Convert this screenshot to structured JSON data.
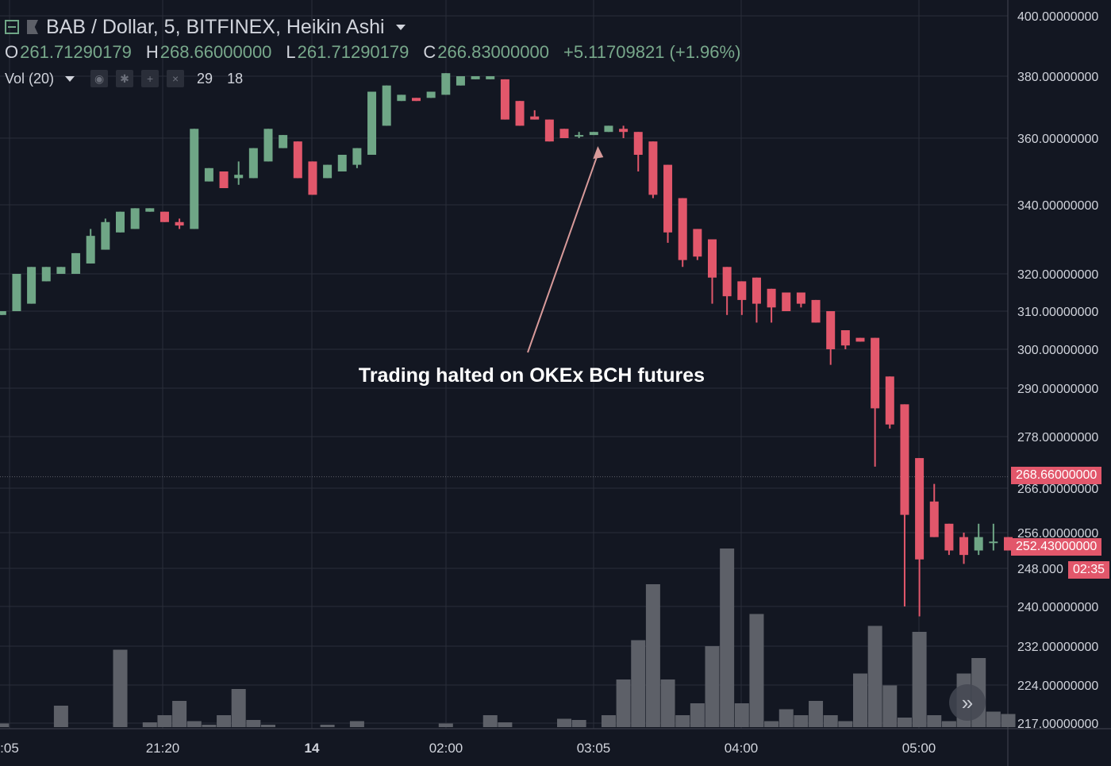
{
  "header": {
    "symbol_title": "BAB / Dollar, 5, BITFINEX, Heikin Ashi",
    "ohlc": [
      {
        "key": "O",
        "value": "261.71290179"
      },
      {
        "key": "H",
        "value": "268.66000000"
      },
      {
        "key": "L",
        "value": "261.71290179"
      },
      {
        "key": "C",
        "value": "266.83000000"
      }
    ],
    "change": "+5.11709821 (+1.96%)",
    "vol_indicator": {
      "label": "Vol (20)",
      "value_1": "29",
      "value_2": "18"
    }
  },
  "colors": {
    "background": "#131722",
    "up": "#6fa686",
    "down": "#e2576b",
    "volume": "#5d6068",
    "grid": "#2a2e39",
    "text": "#d1d4dc",
    "annotation_arrow": "#d89a9a"
  },
  "price_labels": {
    "high_line": "268.66000000",
    "last_price": "252.43000000",
    "countdown": "02:35"
  },
  "scroll_button_icon": "double-chevron-right-icon",
  "chart_data": {
    "type": "candlestick",
    "title": "BAB / Dollar, 5, BITFINEX, Heikin Ashi",
    "y_ticks": [
      "400.00000000",
      "380.00000000",
      "360.00000000",
      "340.00000000",
      "320.00000000",
      "310.00000000",
      "300.00000000",
      "290.00000000",
      "278.00000000",
      "266.00000000",
      "256.00000000",
      "248.000",
      "240.00000000",
      "232.00000000",
      "224.00000000",
      "217.00000000"
    ],
    "x_ticks": [
      ":05",
      "21:20",
      "14",
      "02:00",
      "03:05",
      "04:00",
      "05:00"
    ],
    "annotation": {
      "text": "Trading halted on OKEx BCH futures",
      "points_to_bar": 40
    },
    "candles": [
      {
        "o": 309,
        "h": 310,
        "l": 309,
        "c": 310
      },
      {
        "o": 310,
        "h": 320,
        "l": 310,
        "c": 320
      },
      {
        "o": 312,
        "h": 322,
        "l": 312,
        "c": 322
      },
      {
        "o": 318,
        "h": 322,
        "l": 318,
        "c": 322
      },
      {
        "o": 320,
        "h": 322,
        "l": 320,
        "c": 322
      },
      {
        "o": 320,
        "h": 326,
        "l": 320,
        "c": 326
      },
      {
        "o": 323,
        "h": 333,
        "l": 323,
        "c": 331
      },
      {
        "o": 327,
        "h": 336,
        "l": 327,
        "c": 335
      },
      {
        "o": 332,
        "h": 338,
        "l": 332,
        "c": 338
      },
      {
        "o": 333,
        "h": 339,
        "l": 333,
        "c": 339
      },
      {
        "o": 338,
        "h": 339,
        "l": 338,
        "c": 339
      },
      {
        "o": 338,
        "h": 338,
        "l": 335,
        "c": 335
      },
      {
        "o": 335,
        "h": 336,
        "l": 333,
        "c": 334
      },
      {
        "o": 333,
        "h": 363,
        "l": 333,
        "c": 363
      },
      {
        "o": 347,
        "h": 351,
        "l": 347,
        "c": 351
      },
      {
        "o": 350,
        "h": 350,
        "l": 345,
        "c": 345
      },
      {
        "o": 348,
        "h": 353,
        "l": 346,
        "c": 349
      },
      {
        "o": 348,
        "h": 357,
        "l": 348,
        "c": 357
      },
      {
        "o": 353,
        "h": 363,
        "l": 353,
        "c": 363
      },
      {
        "o": 357,
        "h": 361,
        "l": 357,
        "c": 361
      },
      {
        "o": 359,
        "h": 359,
        "l": 348,
        "c": 348
      },
      {
        "o": 353,
        "h": 353,
        "l": 343,
        "c": 343
      },
      {
        "o": 348,
        "h": 352,
        "l": 348,
        "c": 352
      },
      {
        "o": 350,
        "h": 355,
        "l": 350,
        "c": 355
      },
      {
        "o": 352,
        "h": 357,
        "l": 351,
        "c": 357
      },
      {
        "o": 355,
        "h": 375,
        "l": 355,
        "c": 375
      },
      {
        "o": 364,
        "h": 377,
        "l": 364,
        "c": 377
      },
      {
        "o": 372,
        "h": 374,
        "l": 372,
        "c": 374
      },
      {
        "o": 373,
        "h": 373,
        "l": 372,
        "c": 372
      },
      {
        "o": 373,
        "h": 375,
        "l": 373,
        "c": 375
      },
      {
        "o": 374,
        "h": 381,
        "l": 374,
        "c": 381
      },
      {
        "o": 377,
        "h": 380,
        "l": 377,
        "c": 380
      },
      {
        "o": 379,
        "h": 380,
        "l": 379,
        "c": 380
      },
      {
        "o": 379,
        "h": 380,
        "l": 379,
        "c": 380
      },
      {
        "o": 379,
        "h": 379,
        "l": 366,
        "c": 366
      },
      {
        "o": 372,
        "h": 372,
        "l": 364,
        "c": 364
      },
      {
        "o": 367,
        "h": 369,
        "l": 366,
        "c": 366
      },
      {
        "o": 366,
        "h": 366,
        "l": 359,
        "c": 359
      },
      {
        "o": 363,
        "h": 363,
        "l": 360,
        "c": 360
      },
      {
        "o": 361,
        "h": 362,
        "l": 360,
        "c": 361
      },
      {
        "o": 361,
        "h": 362,
        "l": 361,
        "c": 362
      },
      {
        "o": 362,
        "h": 364,
        "l": 362,
        "c": 364
      },
      {
        "o": 363,
        "h": 364,
        "l": 360,
        "c": 362
      },
      {
        "o": 362,
        "h": 362,
        "l": 350,
        "c": 355
      },
      {
        "o": 359,
        "h": 359,
        "l": 342,
        "c": 343
      },
      {
        "o": 352,
        "h": 352,
        "l": 329,
        "c": 332
      },
      {
        "o": 342,
        "h": 342,
        "l": 322,
        "c": 324
      },
      {
        "o": 333,
        "h": 333,
        "l": 324,
        "c": 325
      },
      {
        "o": 330,
        "h": 330,
        "l": 312,
        "c": 319
      },
      {
        "o": 322,
        "h": 322,
        "l": 309,
        "c": 314
      },
      {
        "o": 318,
        "h": 318,
        "l": 309,
        "c": 313
      },
      {
        "o": 319,
        "h": 319,
        "l": 307,
        "c": 312
      },
      {
        "o": 316,
        "h": 316,
        "l": 307,
        "c": 311
      },
      {
        "o": 315,
        "h": 315,
        "l": 310,
        "c": 310
      },
      {
        "o": 315,
        "h": 315,
        "l": 311,
        "c": 312
      },
      {
        "o": 313,
        "h": 313,
        "l": 307,
        "c": 307
      },
      {
        "o": 310,
        "h": 310,
        "l": 296,
        "c": 300
      },
      {
        "o": 305,
        "h": 305,
        "l": 300,
        "c": 301
      },
      {
        "o": 303,
        "h": 303,
        "l": 302,
        "c": 302
      },
      {
        "o": 303,
        "h": 303,
        "l": 271,
        "c": 285
      },
      {
        "o": 293,
        "h": 293,
        "l": 280,
        "c": 281
      },
      {
        "o": 286,
        "h": 286,
        "l": 240,
        "c": 260
      },
      {
        "o": 273,
        "h": 273,
        "l": 238,
        "c": 250
      },
      {
        "o": 263,
        "h": 267,
        "l": 255,
        "c": 255
      },
      {
        "o": 258,
        "h": 258,
        "l": 251,
        "c": 252
      },
      {
        "o": 255,
        "h": 256,
        "l": 249,
        "c": 251
      },
      {
        "o": 252,
        "h": 258,
        "l": 251,
        "c": 255
      },
      {
        "o": 254,
        "h": 258,
        "l": 252,
        "c": 254
      },
      {
        "o": 255,
        "h": 255,
        "l": 252,
        "c": 252
      }
    ],
    "volumes": [
      0.3,
      0,
      0,
      0,
      1.8,
      0,
      0,
      0,
      6.5,
      0,
      0.4,
      1.0,
      2.2,
      0.5,
      0.2,
      1.0,
      3.2,
      0.6,
      0.2,
      0,
      0,
      0,
      0.2,
      0,
      0.5,
      0,
      0,
      0,
      0,
      0,
      0.3,
      0,
      0,
      1.0,
      0.4,
      0,
      0,
      0,
      0.7,
      0.6,
      0,
      1.0,
      4.0,
      7.3,
      12.0,
      4.0,
      1.0,
      2.0,
      6.8,
      15.0,
      2.0,
      9.5,
      0.5,
      1.5,
      1.0,
      2.2,
      1.0,
      0.5,
      4.5,
      8.5,
      3.5,
      0.8,
      8.0,
      1.0,
      0.5,
      4.5,
      5.8,
      1.3,
      1.1
    ]
  }
}
